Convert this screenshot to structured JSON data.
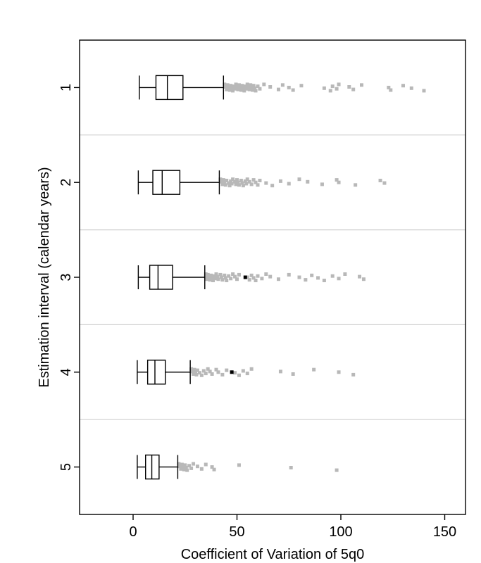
{
  "chart_data": {
    "type": "boxplot",
    "orientation": "horizontal",
    "title": "",
    "xlabel": "Coefficient of Variation of 5q0",
    "ylabel": "Estimation interval (calendar years)",
    "xlim": [
      -25,
      160
    ],
    "xticks": [
      0,
      50,
      100,
      150
    ],
    "xtick_labels": [
      "0",
      "50",
      "100",
      "150"
    ],
    "grid": false,
    "legend": "none",
    "colors": {
      "box": "#000000",
      "outlier": "#b8b8b8",
      "highlight": "#000000",
      "separator": "#d0d0d0"
    },
    "categories": [
      "1",
      "2",
      "3",
      "4",
      "5"
    ],
    "boxes": [
      {
        "label": "1",
        "whisker_low": 3,
        "q1": 11,
        "median": 16.5,
        "q3": 24,
        "whisker_high": 43.5,
        "outliers": [
          44,
          44.5,
          45,
          45.5,
          46,
          46.5,
          47,
          47.5,
          48,
          48.5,
          49,
          49.5,
          50,
          50.5,
          51,
          51.5,
          52,
          52.5,
          53,
          53.5,
          54,
          54.5,
          55,
          55.5,
          56,
          56.5,
          57,
          57.5,
          58,
          58.5,
          59,
          60,
          61,
          63,
          66,
          70,
          72,
          75,
          77,
          81,
          92,
          95,
          96,
          98,
          99,
          104,
          106,
          110,
          123,
          124,
          130,
          134,
          140
        ]
      },
      {
        "label": "2",
        "whisker_low": 2.5,
        "q1": 9.5,
        "median": 14,
        "q3": 22.5,
        "whisker_high": 41.5,
        "outliers": [
          42,
          42.5,
          43,
          43.5,
          44,
          44.5,
          45,
          46,
          46.5,
          47,
          47.5,
          48,
          49,
          49.5,
          50,
          50.5,
          51,
          52,
          52.5,
          53,
          54,
          54.5,
          55,
          56,
          57,
          58,
          59,
          60,
          61,
          64,
          67,
          71,
          75,
          80,
          84,
          91,
          98,
          99,
          107,
          119,
          121
        ]
      },
      {
        "label": "3",
        "whisker_low": 2.5,
        "q1": 8,
        "median": 12,
        "q3": 19,
        "whisker_high": 34.5,
        "outliers": [
          35,
          35,
          35.5,
          36,
          36.5,
          37,
          37.5,
          38,
          38.5,
          39,
          39.5,
          40,
          40.5,
          41,
          42,
          42.5,
          43,
          44,
          44.5,
          45,
          46,
          47,
          48,
          49,
          50,
          51,
          55,
          56,
          57,
          58,
          59,
          60,
          62,
          64,
          66,
          70,
          75,
          80,
          83,
          86,
          89,
          92,
          96,
          99,
          102,
          109,
          111
        ],
        "highlight": 54
      },
      {
        "label": "4",
        "whisker_low": 2,
        "q1": 7,
        "median": 10.5,
        "q3": 15.5,
        "whisker_high": 27.5,
        "outliers": [
          28,
          28.5,
          29,
          29.5,
          30,
          30.5,
          31,
          32,
          33,
          34,
          35,
          36,
          37,
          38,
          40,
          41,
          43,
          45,
          49,
          51,
          53,
          55,
          57,
          71,
          77,
          87,
          99,
          106
        ],
        "highlight": 47.5
      },
      {
        "label": "5",
        "whisker_low": 2,
        "q1": 6,
        "median": 9,
        "q3": 12.5,
        "whisker_high": 21.5,
        "outliers": [
          22,
          22.5,
          23,
          23.5,
          24,
          24.5,
          25,
          25.5,
          26,
          27,
          28,
          29,
          31,
          33,
          35,
          38,
          39,
          51,
          76,
          98
        ]
      }
    ]
  }
}
